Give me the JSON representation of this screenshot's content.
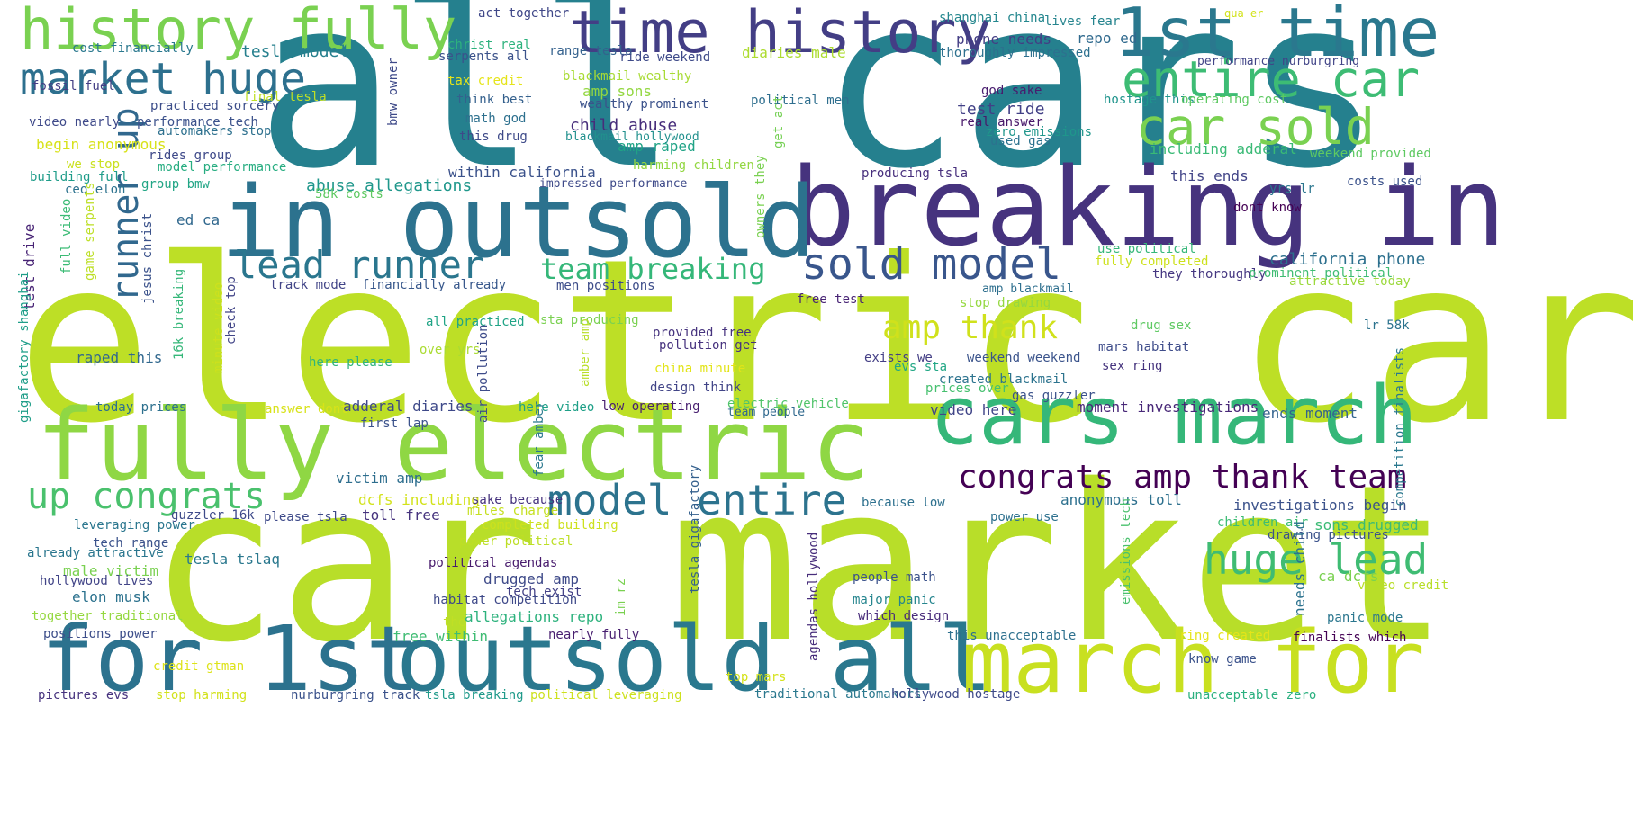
{
  "words": [
    {
      "text": "all cars",
      "color": "#25808e",
      "size": 260
    },
    {
      "text": "electric car",
      "color": "#bddf26",
      "size": 250
    },
    {
      "text": "car market",
      "color": "#b8de29",
      "size": 240
    },
    {
      "text": "fully electric",
      "color": "#8fd744",
      "size": 110
    },
    {
      "text": "breaking in",
      "color": "#46337e",
      "size": 120
    },
    {
      "text": "in outsold",
      "color": "#2c728e",
      "size": 110
    },
    {
      "text": "for 1st",
      "color": "#2c728e",
      "size": 100
    },
    {
      "text": "outsold all",
      "color": "#2a788e",
      "size": 100
    },
    {
      "text": "march for",
      "color": "#c8e020",
      "size": 95
    },
    {
      "text": "cars march",
      "color": "#35b779",
      "size": 90
    },
    {
      "text": "1st time",
      "color": "#2a788e",
      "size": 75
    },
    {
      "text": "time history",
      "color": "#433e85",
      "size": 65
    },
    {
      "text": "history fully",
      "color": "#7ad151",
      "size": 62
    },
    {
      "text": "entire car",
      "color": "#3dbc74",
      "size": 55
    },
    {
      "text": "car sold",
      "color": "#7ad151",
      "size": 55
    },
    {
      "text": "market huge",
      "color": "#2d708e",
      "size": 48
    },
    {
      "text": "sold model",
      "color": "#39568c",
      "size": 48
    },
    {
      "text": "lead runner",
      "color": "#2a768e",
      "size": 42
    },
    {
      "text": "model entire",
      "color": "#2c738e",
      "size": 46
    },
    {
      "text": "huge lead",
      "color": "#3fbc73",
      "size": 46
    },
    {
      "text": "up congrats",
      "color": "#4ac16d",
      "size": 40
    },
    {
      "text": "congrats amp thank team",
      "color": "#440154",
      "size": 36
    },
    {
      "text": "team breaking",
      "color": "#35b779",
      "size": 32
    },
    {
      "text": "amp thank",
      "color": "#d0e11c",
      "size": 36
    },
    {
      "text": "runner up",
      "color": "#31688e",
      "size": 40
    },
    {
      "text": "tesla model",
      "color": "#27808e",
      "size": 18
    },
    {
      "text": "act together",
      "color": "#3f4788",
      "size": 14
    },
    {
      "text": "shanghai china",
      "color": "#24878e",
      "size": 14
    },
    {
      "text": "lives fear",
      "color": "#25848e",
      "size": 14
    },
    {
      "text": "qua er",
      "color": "#d2e21b",
      "size": 12
    },
    {
      "text": "cost financially",
      "color": "#2a788e",
      "size": 14
    },
    {
      "text": "christ real",
      "color": "#2db27d",
      "size": 14
    },
    {
      "text": "range tesla",
      "color": "#34618d",
      "size": 14
    },
    {
      "text": "serpents all",
      "color": "#3b528b",
      "size": 14
    },
    {
      "text": "ride weekend",
      "color": "#3e4a89",
      "size": 14
    },
    {
      "text": "phone needs",
      "color": "#433d84",
      "size": 16
    },
    {
      "text": "repo ed",
      "color": "#306a8e",
      "size": 16
    },
    {
      "text": "diaries male",
      "color": "#addc30",
      "size": 16
    },
    {
      "text": "thoroughly impressed",
      "color": "#2d708e",
      "size": 14
    },
    {
      "text": "performance nurburgring",
      "color": "#414487",
      "size": 13
    },
    {
      "text": "tax credit",
      "color": "#e5e419",
      "size": 14
    },
    {
      "text": "blackmail wealthy",
      "color": "#a8db34",
      "size": 14
    },
    {
      "text": "fossil fuel",
      "color": "#433e85",
      "size": 14
    },
    {
      "text": "god sake",
      "color": "#481c6e",
      "size": 14
    },
    {
      "text": "final tesla",
      "color": "#c0df25",
      "size": 14
    },
    {
      "text": "practiced sorcery",
      "color": "#3d4e8a",
      "size": 14
    },
    {
      "text": "think best",
      "color": "#34608d",
      "size": 14
    },
    {
      "text": "wealthy prominent",
      "color": "#3b528b",
      "size": 14
    },
    {
      "text": "political men",
      "color": "#2e6e8e",
      "size": 14
    },
    {
      "text": "hostage this",
      "color": "#1f948c",
      "size": 14
    },
    {
      "text": "operating cost",
      "color": "#5ec962",
      "size": 14
    },
    {
      "text": "amp sons",
      "color": "#93d741",
      "size": 16
    },
    {
      "text": "video nearly",
      "color": "#3e4989",
      "size": 14
    },
    {
      "text": "performance tech",
      "color": "#3b518b",
      "size": 14
    },
    {
      "text": "math god",
      "color": "#2d708e",
      "size": 14
    },
    {
      "text": "test ride",
      "color": "#424086",
      "size": 18
    },
    {
      "text": "real answer",
      "color": "#48186a",
      "size": 14
    },
    {
      "text": "automakers stop",
      "color": "#2d708e",
      "size": 14
    },
    {
      "text": "child abuse",
      "color": "#472d7b",
      "size": 18
    },
    {
      "text": "zero emissions",
      "color": "#1f968b",
      "size": 14
    },
    {
      "text": "this drug",
      "color": "#3e4a89",
      "size": 14
    },
    {
      "text": "blackmail hollywood",
      "color": "#21908d",
      "size": 13
    },
    {
      "text": "used gas",
      "color": "#2c728e",
      "size": 14
    },
    {
      "text": "begin anonymous",
      "color": "#d8e219",
      "size": 16
    },
    {
      "text": "amp raped",
      "color": "#20a386",
      "size": 16
    },
    {
      "text": "including adderal",
      "color": "#3aba76",
      "size": 16
    },
    {
      "text": "weekend provided",
      "color": "#5ec962",
      "size": 14
    },
    {
      "text": "rides group",
      "color": "#3e4989",
      "size": 14
    },
    {
      "text": "harming children",
      "color": "#93d741",
      "size": 14
    },
    {
      "text": "we stop",
      "color": "#cae11f",
      "size": 14
    },
    {
      "text": "model performance",
      "color": "#27ad81",
      "size": 14
    },
    {
      "text": "building full",
      "color": "#1e9c89",
      "size": 14
    },
    {
      "text": "within california",
      "color": "#3b528b",
      "size": 16
    },
    {
      "text": "producing tsla",
      "color": "#472f7d",
      "size": 14
    },
    {
      "text": "this ends",
      "color": "#414487",
      "size": 16
    },
    {
      "text": "costs used",
      "color": "#3b528b",
      "size": 14
    },
    {
      "text": "group bmw",
      "color": "#21a585",
      "size": 14
    },
    {
      "text": "impressed performance",
      "color": "#3e4a89",
      "size": 13
    },
    {
      "text": "ceo elon",
      "color": "#2c728e",
      "size": 14
    },
    {
      "text": "abuse allegations",
      "color": "#1f978b",
      "size": 18
    },
    {
      "text": "58k costs",
      "color": "#5ec962",
      "size": 14
    },
    {
      "text": "yrs lr",
      "color": "#2a768e",
      "size": 14
    },
    {
      "text": "dont know",
      "color": "#440154",
      "size": 14
    },
    {
      "text": "ed ca",
      "color": "#31688e",
      "size": 16
    },
    {
      "text": "use political",
      "color": "#35b779",
      "size": 14
    },
    {
      "text": "california phone",
      "color": "#2d708e",
      "size": 18
    },
    {
      "text": "fully completed",
      "color": "#cde11d",
      "size": 14
    },
    {
      "text": "they thoroughly",
      "color": "#453781",
      "size": 14
    },
    {
      "text": "prominent political",
      "color": "#3fbc73",
      "size": 14
    },
    {
      "text": "attractive today",
      "color": "#9bd93c",
      "size": 14
    },
    {
      "text": "track mode",
      "color": "#414487",
      "size": 14
    },
    {
      "text": "financially already",
      "color": "#38588c",
      "size": 14
    },
    {
      "text": "men positions",
      "color": "#3d4d8a",
      "size": 14
    },
    {
      "text": "amp blackmail",
      "color": "#2e6f8e",
      "size": 13
    },
    {
      "text": "free test",
      "color": "#482475",
      "size": 14
    },
    {
      "text": "stop drawing",
      "color": "#95d840",
      "size": 14
    },
    {
      "text": "all practiced",
      "color": "#20a486",
      "size": 14
    },
    {
      "text": "sta producing",
      "color": "#7ad151",
      "size": 14
    },
    {
      "text": "provided free",
      "color": "#46337e",
      "size": 14
    },
    {
      "text": "pollution get",
      "color": "#46327e",
      "size": 14
    },
    {
      "text": "drug sex",
      "color": "#5ec962",
      "size": 14
    },
    {
      "text": "lr 58k",
      "color": "#2c738e",
      "size": 14
    },
    {
      "text": "raped this",
      "color": "#31688e",
      "size": 16
    },
    {
      "text": "over yrs",
      "color": "#aadc32",
      "size": 14
    },
    {
      "text": "here please",
      "color": "#30b47c",
      "size": 14
    },
    {
      "text": "exists we",
      "color": "#433e85",
      "size": 14
    },
    {
      "text": "evs sta",
      "color": "#22a785",
      "size": 14
    },
    {
      "text": "weekend weekend",
      "color": "#3a538b",
      "size": 14
    },
    {
      "text": "mars habitat",
      "color": "#3e4c8a",
      "size": 14
    },
    {
      "text": "china minute",
      "color": "#e2e418",
      "size": 14
    },
    {
      "text": "design think",
      "color": "#414487",
      "size": 14
    },
    {
      "text": "created blackmail",
      "color": "#2c738e",
      "size": 14
    },
    {
      "text": "prices over",
      "color": "#46c06f",
      "size": 14
    },
    {
      "text": "sex ring",
      "color": "#45337d",
      "size": 14
    },
    {
      "text": "gas guzzler",
      "color": "#3b528b",
      "size": 14
    },
    {
      "text": "today prices",
      "color": "#2d708e",
      "size": 14
    },
    {
      "text": "answer dont",
      "color": "#d8e219",
      "size": 14
    },
    {
      "text": "adderal diaries",
      "color": "#3e4989",
      "size": 16
    },
    {
      "text": "here video",
      "color": "#1fa088",
      "size": 14
    },
    {
      "text": "low operating",
      "color": "#481f70",
      "size": 14
    },
    {
      "text": "electric vehicle",
      "color": "#50c46a",
      "size": 14
    },
    {
      "text": "team people",
      "color": "#30698e",
      "size": 13
    },
    {
      "text": "moment investigations",
      "color": "#482878",
      "size": 16
    },
    {
      "text": "video here",
      "color": "#404588",
      "size": 16
    },
    {
      "text": "ends moment",
      "color": "#33638d",
      "size": 16
    },
    {
      "text": "first lap",
      "color": "#3b528b",
      "size": 14
    },
    {
      "text": "victim amp",
      "color": "#2e6e8e",
      "size": 16
    },
    {
      "text": "dcfs including",
      "color": "#d2e21b",
      "size": 16
    },
    {
      "text": "sake because",
      "color": "#46337e",
      "size": 14
    },
    {
      "text": "miles charge",
      "color": "#c5e021",
      "size": 14
    },
    {
      "text": "because low",
      "color": "#2d708e",
      "size": 14
    },
    {
      "text": "anonymous toll",
      "color": "#2d708e",
      "size": 16
    },
    {
      "text": "investigations begin",
      "color": "#3b528b",
      "size": 16
    },
    {
      "text": "leveraging power",
      "color": "#2a768e",
      "size": 14
    },
    {
      "text": "guzzler 16k",
      "color": "#3e4a89",
      "size": 14
    },
    {
      "text": "please tsla",
      "color": "#3e4a89",
      "size": 14
    },
    {
      "text": "toll free",
      "color": "#46337e",
      "size": 16
    },
    {
      "text": "completed building",
      "color": "#cde11d",
      "size": 14
    },
    {
      "text": "power use",
      "color": "#2d708e",
      "size": 14
    },
    {
      "text": "children air",
      "color": "#3dbc74",
      "size": 14
    },
    {
      "text": "sons drugged",
      "color": "#3bbb75",
      "size": 16
    },
    {
      "text": "tech range",
      "color": "#3b528b",
      "size": 14
    },
    {
      "text": "already attractive",
      "color": "#2a768e",
      "size": 14
    },
    {
      "text": "power political",
      "color": "#bddf26",
      "size": 14
    },
    {
      "text": "drawing pictures",
      "color": "#3b528b",
      "size": 14
    },
    {
      "text": "tesla tslaq",
      "color": "#2a788e",
      "size": 16
    },
    {
      "text": "male victim",
      "color": "#7ad151",
      "size": 16
    },
    {
      "text": "political agendas",
      "color": "#481b6d",
      "size": 14
    },
    {
      "text": "drugged amp",
      "color": "#3e4a89",
      "size": 16
    },
    {
      "text": "hollywood lives",
      "color": "#414487",
      "size": 14
    },
    {
      "text": "tech exist",
      "color": "#424086",
      "size": 14
    },
    {
      "text": "people math",
      "color": "#3b528b",
      "size": 14
    },
    {
      "text": "ca dcfs",
      "color": "#7ad151",
      "size": 16
    },
    {
      "text": "video credit",
      "color": "#b8de29",
      "size": 14
    },
    {
      "text": "elon musk",
      "color": "#2c728e",
      "size": 16
    },
    {
      "text": "habitat competition",
      "color": "#3e4989",
      "size": 14
    },
    {
      "text": "major panic",
      "color": "#25858e",
      "size": 14
    },
    {
      "text": "panic mode",
      "color": "#2a768e",
      "size": 14
    },
    {
      "text": "together traditional",
      "color": "#95d840",
      "size": 14
    },
    {
      "text": "allegations repo",
      "color": "#2db27d",
      "size": 16
    },
    {
      "text": "which design",
      "color": "#472a7a",
      "size": 14
    },
    {
      "text": "the",
      "color": "#c0df25",
      "size": 14
    },
    {
      "text": "positions power",
      "color": "#3d4e8a",
      "size": 14
    },
    {
      "text": "free within",
      "color": "#3fbc73",
      "size": 16
    },
    {
      "text": "nearly fully",
      "color": "#481f70",
      "size": 14
    },
    {
      "text": "this unacceptable",
      "color": "#2d708e",
      "size": 14
    },
    {
      "text": "ring created",
      "color": "#e5e419",
      "size": 14
    },
    {
      "text": "finalists which",
      "color": "#440154",
      "size": 14
    },
    {
      "text": "credit gtman",
      "color": "#dde318",
      "size": 14
    },
    {
      "text": "top mars",
      "color": "#d5e21a",
      "size": 14
    },
    {
      "text": "know game",
      "color": "#3b528b",
      "size": 14
    },
    {
      "text": "pictures evs",
      "color": "#46327e",
      "size": 14
    },
    {
      "text": "stop harming",
      "color": "#d2e21b",
      "size": 14
    },
    {
      "text": "nurburgring track",
      "color": "#3b528b",
      "size": 14
    },
    {
      "text": "tsla breaking",
      "color": "#1f9a8a",
      "size": 14
    },
    {
      "text": "political leveraging",
      "color": "#cde11d",
      "size": 14
    },
    {
      "text": "traditional automakers",
      "color": "#2a788e",
      "size": 14
    },
    {
      "text": "hollywood hostage",
      "color": "#3e4a89",
      "size": 14
    },
    {
      "text": "unacceptable zero",
      "color": "#2ab07f",
      "size": 14
    },
    {
      "text": "bmw owner",
      "color": "#3e4a89",
      "size": 14
    },
    {
      "text": "get act",
      "color": "#75d054",
      "size": 14
    },
    {
      "text": "owners they",
      "color": "#7ad151",
      "size": 14
    },
    {
      "text": "full video",
      "color": "#3bbb75",
      "size": 14
    },
    {
      "text": "game serpents",
      "color": "#bddf26",
      "size": 14
    },
    {
      "text": "test drive",
      "color": "#482475",
      "size": 16
    },
    {
      "text": "jesus christ",
      "color": "#3b528b",
      "size": 14
    },
    {
      "text": "16k breaking",
      "color": "#35b779",
      "size": 14
    },
    {
      "text": "minute video",
      "color": "#cde11d",
      "size": 14
    },
    {
      "text": "check top",
      "color": "#414487",
      "size": 14
    },
    {
      "text": "gigafactory shanghai",
      "color": "#1f9e89",
      "size": 14
    },
    {
      "text": "air pollution",
      "color": "#3e4c8a",
      "size": 14
    },
    {
      "text": "amber amp",
      "color": "#b8de29",
      "size": 14
    },
    {
      "text": "fear amber",
      "color": "#2a788e",
      "size": 14
    },
    {
      "text": "tesla gigafactory",
      "color": "#34608d",
      "size": 14
    },
    {
      "text": "agendas hollywood",
      "color": "#472d7b",
      "size": 14
    },
    {
      "text": "im rz",
      "color": "#7ad151",
      "size": 14
    },
    {
      "text": "emissions tech",
      "color": "#4ac16d",
      "size": 14
    },
    {
      "text": "needs child",
      "color": "#2c728e",
      "size": 16
    },
    {
      "text": "competition finalists",
      "color": "#2a788e",
      "size": 14
    }
  ]
}
